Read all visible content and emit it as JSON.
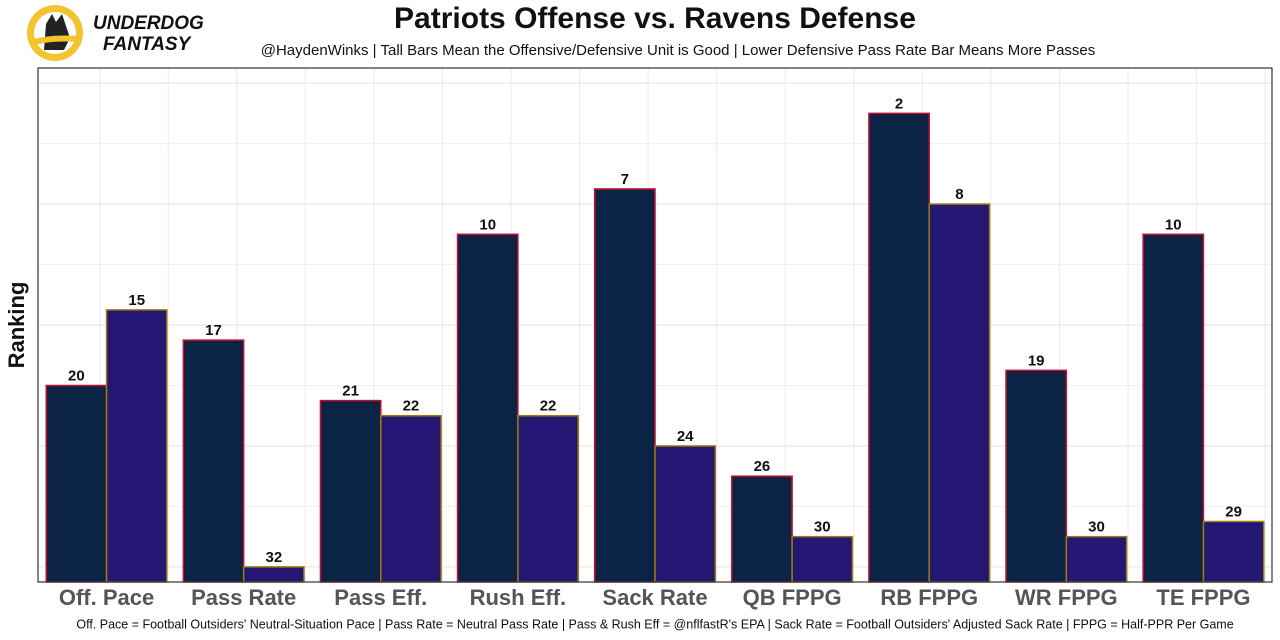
{
  "logo": {
    "line1": "UNDERDOG",
    "line2": "FANTASY"
  },
  "chart_data": {
    "type": "bar",
    "title": "Patriots Offense vs. Ravens Defense",
    "subtitle": "@HaydenWinks | Tall Bars Mean the Offensive/Defensive Unit is Good | Lower Defensive Pass Rate Bar Means More Passes",
    "ylabel": "Ranking",
    "footnote": "Off. Pace = Football Outsiders' Neutral-Situation Pace | Pass Rate = Neutral Pass Rate | Pass & Rush Eff = @nflfastR's EPA | Sack Rate = Football Outsiders' Adjusted Sack Rate | FPPG = Half-PPR Per Game",
    "categories": [
      "Off. Pace",
      "Pass Rate",
      "Pass Eff.",
      "Rush Eff.",
      "Sack Rate",
      "QB FPPG",
      "RB FPPG",
      "WR FPPG",
      "TE FPPG"
    ],
    "series": [
      {
        "color": "#0b2344",
        "edge": "#c8102e",
        "values": [
          20,
          17,
          21,
          10,
          7,
          26,
          2,
          19,
          10
        ]
      },
      {
        "color": "#241773",
        "edge": "#9e7c0c",
        "values": [
          15,
          32,
          22,
          22,
          24,
          30,
          8,
          30,
          29
        ]
      }
    ],
    "ylim": [
      33,
      -1
    ],
    "yticks": [
      0,
      4,
      8,
      12,
      16,
      20,
      24,
      28,
      32
    ],
    "grid": true
  }
}
